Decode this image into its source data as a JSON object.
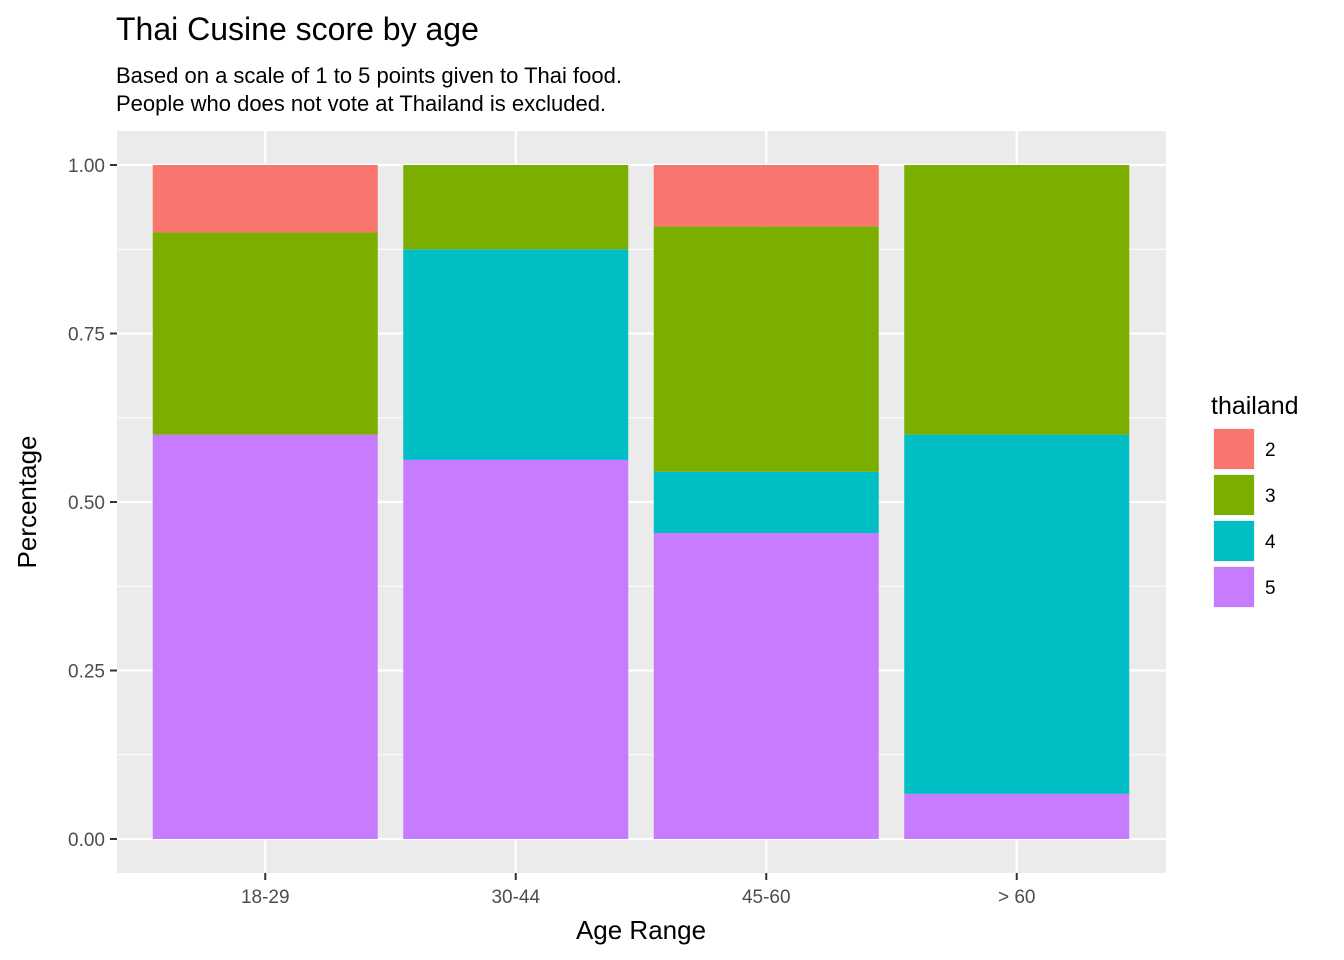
{
  "chart_data": {
    "type": "bar",
    "stacked": true,
    "title": "Thai Cusine score by age",
    "subtitle": [
      "Based on a scale of 1 to 5 points given to Thai food.",
      "People who does not vote at Thailand is excluded."
    ],
    "xlabel": "Age Range",
    "ylabel": "Percentage",
    "categories": [
      "18-29",
      "30-44",
      "45-60",
      "> 60"
    ],
    "ylim": [
      0,
      1
    ],
    "yticks": [
      "0.00",
      "0.25",
      "0.50",
      "0.75",
      "1.00"
    ],
    "ytick_values": [
      0,
      0.25,
      0.5,
      0.75,
      1.0
    ],
    "grid": true,
    "legend": {
      "title": "thailand",
      "position": "right",
      "entries": [
        "2",
        "3",
        "4",
        "5"
      ]
    },
    "series": [
      {
        "name": "2",
        "color": "#F8766D",
        "values": [
          0.1,
          0.0,
          0.091,
          0.0
        ]
      },
      {
        "name": "3",
        "color": "#7CAE00",
        "values": [
          0.3,
          0.125,
          0.364,
          0.4
        ]
      },
      {
        "name": "4",
        "color": "#00BFC4",
        "values": [
          0.0,
          0.3125,
          0.091,
          0.533
        ]
      },
      {
        "name": "5",
        "color": "#C77CFF",
        "values": [
          0.6,
          0.5625,
          0.454,
          0.067
        ]
      }
    ],
    "colors": {
      "panel_background": "#EBEBEB",
      "grid_line": "#FFFFFF",
      "tick_text": "#4D4D4D"
    }
  }
}
